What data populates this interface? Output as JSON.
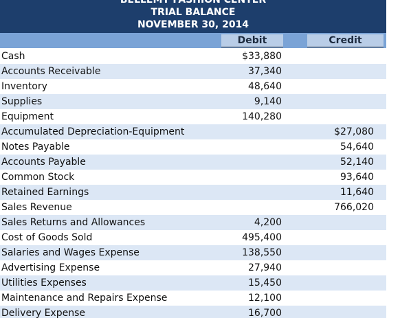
{
  "header": {
    "company": "BELLEMY FASHION CENTER",
    "title": "TRIAL BALANCE",
    "date": "NOVEMBER 30, 2014"
  },
  "table": {
    "columns": [
      "Debit",
      "Credit"
    ],
    "rows": [
      {
        "account": "Cash",
        "debit": "$33,880"
      },
      {
        "account": "Accounts Receivable",
        "debit": "37,340"
      },
      {
        "account": "Inventory",
        "debit": "48,640"
      },
      {
        "account": "Supplies",
        "debit": "9,140"
      },
      {
        "account": "Equipment",
        "debit": "140,280"
      },
      {
        "account": "Accumulated Depreciation-Equipment",
        "credit": "$27,080"
      },
      {
        "account": "Notes Payable",
        "credit": "54,640"
      },
      {
        "account": "Accounts Payable",
        "credit": "52,140"
      },
      {
        "account": "Common Stock",
        "credit": "93,640"
      },
      {
        "account": "Retained Earnings",
        "credit": "11,640"
      },
      {
        "account": "Sales Revenue",
        "credit": "766,020"
      },
      {
        "account": "Sales Returns and Allowances",
        "debit": "4,200"
      },
      {
        "account": "Cost of Goods Sold",
        "debit": "495,400"
      },
      {
        "account": "Salaries and Wages Expense",
        "debit": "138,550"
      },
      {
        "account": "Advertising Expense",
        "debit": "27,940"
      },
      {
        "account": "Utilities Expenses",
        "debit": "15,450"
      },
      {
        "account": "Maintenance and Repairs Expense",
        "debit": "12,100"
      },
      {
        "account": "Delivery Expense",
        "debit": "16,700"
      }
    ]
  }
}
